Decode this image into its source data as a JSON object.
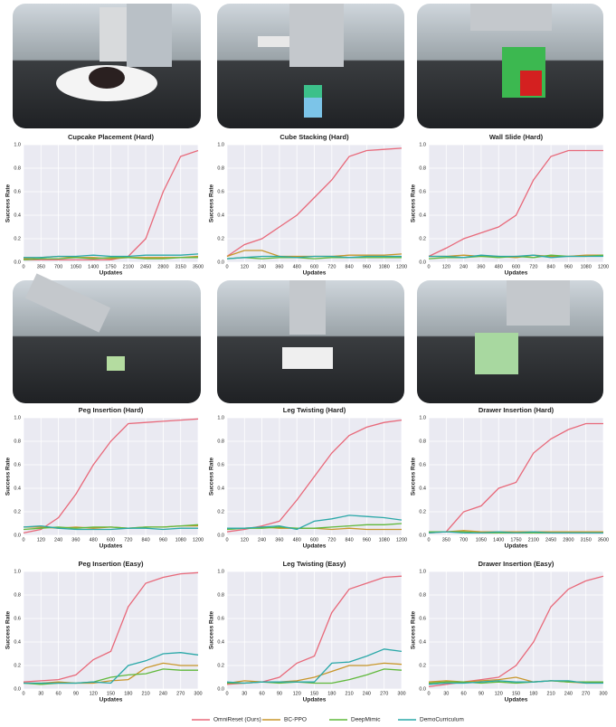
{
  "chart_data": [
    {
      "type": "line",
      "title": "Cupcake Placement (Hard)",
      "xlabel": "Updates",
      "ylabel": "Success Rate",
      "x": [
        0,
        350,
        700,
        1050,
        1400,
        1750,
        2100,
        2450,
        2800,
        3150,
        3500
      ],
      "xlim": [
        0,
        3500
      ],
      "xticks": [
        0,
        350,
        700,
        1050,
        1400,
        1750,
        2100,
        2450,
        2800,
        3150,
        3500
      ],
      "ylim": [
        0,
        1
      ],
      "yticks": [
        {
          "value": 0,
          "label": "0.0"
        },
        0.2,
        0.4,
        0.6,
        0.8,
        {
          "value": 1,
          "label": "1.0"
        }
      ],
      "series": [
        {
          "color": "#e8697a",
          "values": [
            0.02,
            0.02,
            0.02,
            0.02,
            0.02,
            0.02,
            0.05,
            0.2,
            0.6,
            0.9,
            0.95
          ]
        },
        {
          "color": "#c8962a",
          "values": [
            0.03,
            0.04,
            0.05,
            0.04,
            0.04,
            0.03,
            0.04,
            0.04,
            0.04,
            0.04,
            0.05
          ]
        },
        {
          "color": "#5fb83a",
          "values": [
            0.02,
            0.03,
            0.03,
            0.04,
            0.03,
            0.04,
            0.04,
            0.03,
            0.03,
            0.04,
            0.04
          ]
        },
        {
          "color": "#2aa8a8",
          "values": [
            0.04,
            0.04,
            0.05,
            0.05,
            0.06,
            0.05,
            0.05,
            0.06,
            0.06,
            0.06,
            0.07
          ]
        }
      ]
    },
    {
      "type": "line",
      "title": "Cube Stacking (Hard)",
      "xlabel": "Updates",
      "ylabel": "Success Rate",
      "x": [
        0,
        120,
        240,
        360,
        480,
        600,
        720,
        840,
        960,
        1080,
        1200
      ],
      "xlim": [
        0,
        1200
      ],
      "xticks": [
        0,
        120,
        240,
        360,
        480,
        600,
        720,
        840,
        960,
        1080,
        1200
      ],
      "ylim": [
        0,
        1
      ],
      "yticks": [
        {
          "value": 0,
          "label": "0.0"
        },
        0.2,
        0.4,
        0.6,
        0.8,
        {
          "value": 1,
          "label": "1.0"
        }
      ],
      "series": [
        {
          "color": "#e8697a",
          "values": [
            0.05,
            0.15,
            0.2,
            0.3,
            0.4,
            0.55,
            0.7,
            0.9,
            0.95,
            0.96,
            0.97
          ]
        },
        {
          "color": "#c8962a",
          "values": [
            0.05,
            0.1,
            0.1,
            0.05,
            0.05,
            0.05,
            0.05,
            0.06,
            0.06,
            0.06,
            0.07
          ]
        },
        {
          "color": "#5fb83a",
          "values": [
            0.03,
            0.04,
            0.03,
            0.04,
            0.04,
            0.03,
            0.04,
            0.04,
            0.04,
            0.04,
            0.04
          ]
        },
        {
          "color": "#2aa8a8",
          "values": [
            0.03,
            0.04,
            0.05,
            0.05,
            0.04,
            0.05,
            0.05,
            0.04,
            0.05,
            0.05,
            0.05
          ]
        }
      ]
    },
    {
      "type": "line",
      "title": "Wall Slide (Hard)",
      "xlabel": "Updates",
      "ylabel": "Success Rate",
      "x": [
        0,
        120,
        240,
        360,
        480,
        600,
        720,
        840,
        960,
        1080,
        1200
      ],
      "xlim": [
        0,
        1200
      ],
      "xticks": [
        0,
        120,
        240,
        360,
        480,
        600,
        720,
        840,
        960,
        1080,
        1200
      ],
      "ylim": [
        0,
        1
      ],
      "yticks": [
        {
          "value": 0,
          "label": "0.0"
        },
        0.2,
        0.4,
        0.6,
        0.8,
        {
          "value": 1,
          "label": "1.0"
        }
      ],
      "series": [
        {
          "color": "#e8697a",
          "values": [
            0.05,
            0.12,
            0.2,
            0.25,
            0.3,
            0.4,
            0.7,
            0.9,
            0.95,
            0.95,
            0.95
          ]
        },
        {
          "color": "#c8962a",
          "values": [
            0.05,
            0.05,
            0.06,
            0.05,
            0.05,
            0.04,
            0.06,
            0.05,
            0.05,
            0.06,
            0.06
          ]
        },
        {
          "color": "#5fb83a",
          "values": [
            0.03,
            0.04,
            0.04,
            0.05,
            0.04,
            0.05,
            0.04,
            0.06,
            0.05,
            0.05,
            0.06
          ]
        },
        {
          "color": "#2aa8a8",
          "values": [
            0.05,
            0.05,
            0.04,
            0.06,
            0.05,
            0.05,
            0.06,
            0.04,
            0.05,
            0.05,
            0.05
          ]
        }
      ]
    },
    {
      "type": "line",
      "title": "Peg Insertion (Hard)",
      "xlabel": "Updates",
      "ylabel": "Success Rate",
      "x": [
        0,
        120,
        240,
        360,
        480,
        600,
        720,
        840,
        960,
        1080,
        1200
      ],
      "xlim": [
        0,
        1200
      ],
      "xticks": [
        0,
        120,
        240,
        360,
        480,
        600,
        720,
        840,
        960,
        1080,
        1200
      ],
      "ylim": [
        0,
        1
      ],
      "yticks": [
        {
          "value": 0,
          "label": "0.0"
        },
        0.2,
        0.4,
        0.6,
        0.8,
        {
          "value": 1,
          "label": "1.0"
        }
      ],
      "series": [
        {
          "color": "#e8697a",
          "values": [
            0.02,
            0.05,
            0.15,
            0.35,
            0.6,
            0.8,
            0.95,
            0.96,
            0.97,
            0.98,
            0.99
          ]
        },
        {
          "color": "#c8962a",
          "values": [
            0.07,
            0.07,
            0.06,
            0.07,
            0.06,
            0.07,
            0.06,
            0.07,
            0.07,
            0.08,
            0.08
          ]
        },
        {
          "color": "#5fb83a",
          "values": [
            0.05,
            0.06,
            0.07,
            0.06,
            0.07,
            0.07,
            0.06,
            0.07,
            0.07,
            0.08,
            0.09
          ]
        },
        {
          "color": "#2aa8a8",
          "values": [
            0.07,
            0.08,
            0.06,
            0.05,
            0.05,
            0.05,
            0.06,
            0.06,
            0.05,
            0.06,
            0.06
          ]
        }
      ]
    },
    {
      "type": "line",
      "title": "Leg Twisting (Hard)",
      "xlabel": "Updates",
      "ylabel": "Success Rate",
      "x": [
        0,
        120,
        240,
        360,
        480,
        600,
        720,
        840,
        960,
        1080,
        1200
      ],
      "xlim": [
        0,
        1200
      ],
      "xticks": [
        0,
        120,
        240,
        360,
        480,
        600,
        720,
        840,
        960,
        1080,
        1200
      ],
      "ylim": [
        0,
        1
      ],
      "yticks": [
        {
          "value": 0,
          "label": "0.0"
        },
        0.2,
        0.4,
        0.6,
        0.8,
        {
          "value": 1,
          "label": "1.0"
        }
      ],
      "series": [
        {
          "color": "#e8697a",
          "values": [
            0.03,
            0.05,
            0.08,
            0.12,
            0.3,
            0.5,
            0.7,
            0.85,
            0.92,
            0.96,
            0.98
          ]
        },
        {
          "color": "#c8962a",
          "values": [
            0.06,
            0.06,
            0.07,
            0.06,
            0.06,
            0.06,
            0.05,
            0.06,
            0.05,
            0.05,
            0.05
          ]
        },
        {
          "color": "#5fb83a",
          "values": [
            0.05,
            0.06,
            0.06,
            0.07,
            0.06,
            0.06,
            0.07,
            0.08,
            0.09,
            0.09,
            0.1
          ]
        },
        {
          "color": "#2aa8a8",
          "values": [
            0.06,
            0.06,
            0.07,
            0.08,
            0.05,
            0.12,
            0.14,
            0.17,
            0.16,
            0.15,
            0.13
          ]
        }
      ]
    },
    {
      "type": "line",
      "title": "Drawer Insertion (Hard)",
      "xlabel": "Updates",
      "ylabel": "Success Rate",
      "x": [
        0,
        350,
        700,
        1050,
        1400,
        1750,
        2100,
        2450,
        2800,
        3150,
        3500
      ],
      "xlim": [
        0,
        3500
      ],
      "xticks": [
        0,
        350,
        700,
        1050,
        1400,
        1750,
        2100,
        2450,
        2800,
        3150,
        3500
      ],
      "ylim": [
        0,
        1
      ],
      "yticks": [
        {
          "value": 0,
          "label": "0.0"
        },
        0.2,
        0.4,
        0.6,
        0.8,
        {
          "value": 1,
          "label": "1.0"
        }
      ],
      "series": [
        {
          "color": "#e8697a",
          "values": [
            0.02,
            0.03,
            0.2,
            0.25,
            0.4,
            0.45,
            0.7,
            0.82,
            0.9,
            0.95,
            0.95
          ]
        },
        {
          "color": "#c8962a",
          "values": [
            0.03,
            0.03,
            0.04,
            0.03,
            0.03,
            0.03,
            0.03,
            0.03,
            0.03,
            0.03,
            0.03
          ]
        },
        {
          "color": "#5fb83a",
          "values": [
            0.03,
            0.03,
            0.03,
            0.02,
            0.02,
            0.02,
            0.02,
            0.02,
            0.02,
            0.02,
            0.02
          ]
        },
        {
          "color": "#2aa8a8",
          "values": [
            0.02,
            0.03,
            0.02,
            0.02,
            0.03,
            0.02,
            0.03,
            0.02,
            0.02,
            0.02,
            0.02
          ]
        }
      ]
    },
    {
      "type": "line",
      "title": "Peg Insertion (Easy)",
      "xlabel": "Updates",
      "ylabel": "Success Rate",
      "x": [
        0,
        30,
        60,
        90,
        120,
        150,
        180,
        210,
        240,
        270,
        300
      ],
      "xlim": [
        0,
        300
      ],
      "xticks": [
        0,
        30,
        60,
        90,
        120,
        150,
        180,
        210,
        240,
        270,
        300
      ],
      "ylim": [
        0,
        1
      ],
      "yticks": [
        {
          "value": 0,
          "label": "0.0"
        },
        0.2,
        0.4,
        0.6,
        0.8,
        {
          "value": 1,
          "label": "1.0"
        }
      ],
      "series": [
        {
          "color": "#e8697a",
          "values": [
            0.06,
            0.07,
            0.08,
            0.12,
            0.25,
            0.32,
            0.7,
            0.9,
            0.95,
            0.98,
            0.99
          ]
        },
        {
          "color": "#c8962a",
          "values": [
            0.05,
            0.05,
            0.06,
            0.05,
            0.05,
            0.07,
            0.08,
            0.18,
            0.22,
            0.2,
            0.2
          ]
        },
        {
          "color": "#5fb83a",
          "values": [
            0.05,
            0.04,
            0.05,
            0.05,
            0.06,
            0.1,
            0.12,
            0.13,
            0.17,
            0.16,
            0.16
          ]
        },
        {
          "color": "#2aa8a8",
          "values": [
            0.05,
            0.05,
            0.05,
            0.05,
            0.06,
            0.05,
            0.2,
            0.24,
            0.3,
            0.31,
            0.29
          ]
        }
      ]
    },
    {
      "type": "line",
      "title": "Leg Twisting (Easy)",
      "xlabel": "Updates",
      "ylabel": "Success Rate",
      "x": [
        0,
        30,
        60,
        90,
        120,
        150,
        180,
        210,
        240,
        270,
        300
      ],
      "xlim": [
        0,
        300
      ],
      "xticks": [
        0,
        30,
        60,
        90,
        120,
        150,
        180,
        210,
        240,
        270,
        300
      ],
      "ylim": [
        0,
        1
      ],
      "yticks": [
        {
          "value": 0,
          "label": "0.0"
        },
        0.2,
        0.4,
        0.6,
        0.8,
        {
          "value": 1,
          "label": "1.0"
        }
      ],
      "series": [
        {
          "color": "#e8697a",
          "values": [
            0.04,
            0.05,
            0.06,
            0.1,
            0.22,
            0.28,
            0.65,
            0.85,
            0.9,
            0.95,
            0.96
          ]
        },
        {
          "color": "#c8962a",
          "values": [
            0.05,
            0.07,
            0.06,
            0.06,
            0.07,
            0.1,
            0.15,
            0.2,
            0.2,
            0.22,
            0.21
          ]
        },
        {
          "color": "#5fb83a",
          "values": [
            0.05,
            0.05,
            0.06,
            0.05,
            0.06,
            0.05,
            0.05,
            0.08,
            0.12,
            0.17,
            0.16
          ]
        },
        {
          "color": "#2aa8a8",
          "values": [
            0.06,
            0.05,
            0.06,
            0.06,
            0.06,
            0.06,
            0.22,
            0.23,
            0.28,
            0.34,
            0.32
          ]
        }
      ]
    },
    {
      "type": "line",
      "title": "Drawer Insertion (Easy)",
      "xlabel": "Updates",
      "ylabel": "Success Rate",
      "x": [
        0,
        30,
        60,
        90,
        120,
        150,
        180,
        210,
        240,
        270,
        300
      ],
      "xlim": [
        0,
        300
      ],
      "xticks": [
        0,
        30,
        60,
        90,
        120,
        150,
        180,
        210,
        240,
        270,
        300
      ],
      "ylim": [
        0,
        1
      ],
      "yticks": [
        {
          "value": 0,
          "label": "0.0"
        },
        0.2,
        0.4,
        0.6,
        0.8,
        {
          "value": 1,
          "label": "1.0"
        }
      ],
      "series": [
        {
          "color": "#e8697a",
          "values": [
            0.02,
            0.04,
            0.06,
            0.08,
            0.1,
            0.2,
            0.4,
            0.7,
            0.85,
            0.92,
            0.96
          ]
        },
        {
          "color": "#c8962a",
          "values": [
            0.06,
            0.07,
            0.06,
            0.07,
            0.08,
            0.1,
            0.06,
            0.07,
            0.06,
            0.05,
            0.06
          ]
        },
        {
          "color": "#5fb83a",
          "values": [
            0.05,
            0.06,
            0.06,
            0.05,
            0.06,
            0.05,
            0.06,
            0.07,
            0.06,
            0.06,
            0.06
          ]
        },
        {
          "color": "#2aa8a8",
          "values": [
            0.04,
            0.05,
            0.05,
            0.06,
            0.07,
            0.06,
            0.06,
            0.07,
            0.07,
            0.05,
            0.05
          ]
        }
      ]
    }
  ],
  "legend": [
    "OmniReset (Ours)",
    "BC-PPO",
    "DeepMimic",
    "DemoCurriculum"
  ]
}
